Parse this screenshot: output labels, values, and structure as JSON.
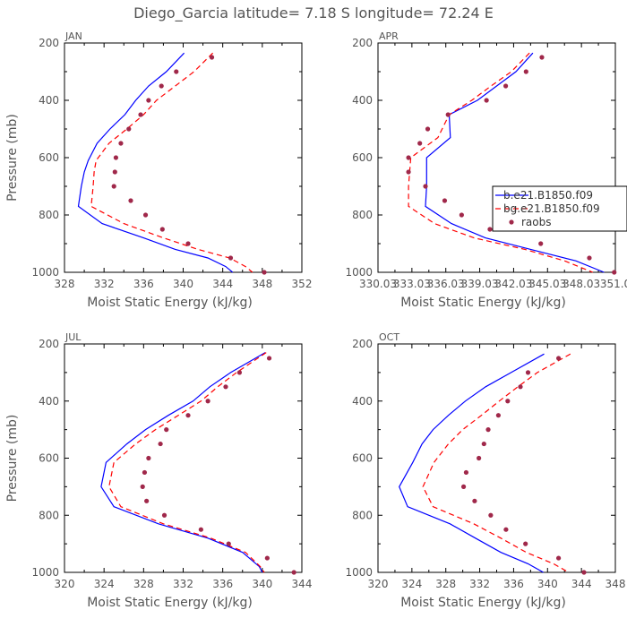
{
  "title": "Diego_Garcia  latitude= 7.18 S longitude= 72.24 E",
  "legend": {
    "placement": "right-middle of APR panel",
    "entries": [
      "b.e21.B1850.f09",
      "bg.e21.B1850.f09",
      "raobs"
    ]
  },
  "colors": {
    "model1": "#0000ff",
    "model2": "#ff0000",
    "raobs": "#a0284a",
    "axis": "#000000",
    "text": "#555555"
  },
  "chart_data": [
    {
      "type": "line",
      "panel": "JAN",
      "xlabel": "Moist Static Energy (kJ/kg)",
      "ylabel": "Pressure (mb)",
      "xlim": [
        328,
        352
      ],
      "ylim": [
        1000,
        200
      ],
      "xticks": [
        "328",
        "332",
        "336",
        "340",
        "344",
        "348",
        "352"
      ],
      "yticks": [
        "200",
        "400",
        "600",
        "800",
        "1000"
      ],
      "series": [
        {
          "name": "b.e21.B1850.f09",
          "style": "solid",
          "points": [
            [
              340.1,
              235
            ],
            [
              338.3,
              300
            ],
            [
              336.5,
              350
            ],
            [
              335.2,
              400
            ],
            [
              334.1,
              450
            ],
            [
              332.6,
              500
            ],
            [
              331.3,
              550
            ],
            [
              330.4,
              610
            ],
            [
              330.0,
              650
            ],
            [
              329.7,
              700
            ],
            [
              329.4,
              770
            ],
            [
              331.8,
              830
            ],
            [
              336.0,
              880
            ],
            [
              339.2,
              920
            ],
            [
              342.5,
              950
            ],
            [
              344.3,
              980
            ],
            [
              345.0,
              1000
            ]
          ]
        },
        {
          "name": "bg.e21.B1850.f09",
          "style": "dashed",
          "points": [
            [
              343.0,
              235
            ],
            [
              341.1,
              300
            ],
            [
              339.2,
              350
            ],
            [
              337.3,
              400
            ],
            [
              336.0,
              450
            ],
            [
              334.3,
              500
            ],
            [
              332.5,
              550
            ],
            [
              331.2,
              610
            ],
            [
              331.0,
              650
            ],
            [
              330.9,
              700
            ],
            [
              330.7,
              770
            ],
            [
              334.0,
              830
            ],
            [
              338.0,
              880
            ],
            [
              341.5,
              920
            ],
            [
              344.7,
              950
            ],
            [
              346.3,
              980
            ],
            [
              347.0,
              1000
            ]
          ]
        },
        {
          "name": "raobs",
          "style": "dots",
          "points": [
            [
              342.9,
              250
            ],
            [
              339.3,
              300
            ],
            [
              337.8,
              350
            ],
            [
              336.5,
              400
            ],
            [
              335.7,
              450
            ],
            [
              334.5,
              500
            ],
            [
              333.7,
              550
            ],
            [
              333.2,
              600
            ],
            [
              333.1,
              650
            ],
            [
              333.0,
              700
            ],
            [
              334.7,
              750
            ],
            [
              336.2,
              800
            ],
            [
              337.9,
              850
            ],
            [
              340.5,
              900
            ],
            [
              344.8,
              950
            ],
            [
              348.2,
              1000
            ]
          ]
        }
      ]
    },
    {
      "type": "line",
      "panel": "APR",
      "xlabel": "Moist Static Energy (kJ/kg)",
      "ylabel": "",
      "xlim": [
        330,
        351
      ],
      "ylim": [
        1000,
        200
      ],
      "xticks": [
        "330.03",
        "333.03",
        "336.03",
        "339.03",
        "342.03",
        "345.03",
        "348.03",
        "351.0"
      ],
      "yticks": [
        "200",
        "400",
        "600",
        "800",
        "1000"
      ],
      "series": [
        {
          "name": "b.e21.B1850.f09",
          "style": "solid",
          "points": [
            [
              343.7,
              235
            ],
            [
              342.2,
              300
            ],
            [
              340.5,
              350
            ],
            [
              338.8,
              400
            ],
            [
              336.3,
              450
            ],
            [
              336.4,
              530
            ],
            [
              334.3,
              600
            ],
            [
              334.3,
              700
            ],
            [
              334.2,
              770
            ],
            [
              336.5,
              830
            ],
            [
              339.5,
              880
            ],
            [
              343.5,
              920
            ],
            [
              347.5,
              960
            ],
            [
              350.0,
              1000
            ]
          ]
        },
        {
          "name": "bg.e21.B1850.f09",
          "style": "dashed",
          "points": [
            [
              343.4,
              235
            ],
            [
              341.8,
              300
            ],
            [
              340.0,
              350
            ],
            [
              338.3,
              400
            ],
            [
              336.3,
              450
            ],
            [
              335.3,
              530
            ],
            [
              332.9,
              600
            ],
            [
              332.7,
              700
            ],
            [
              332.7,
              770
            ],
            [
              335.0,
              830
            ],
            [
              338.5,
              880
            ],
            [
              343.0,
              920
            ],
            [
              346.5,
              960
            ],
            [
              349.0,
              1000
            ]
          ]
        },
        {
          "name": "raobs",
          "style": "dots",
          "points": [
            [
              344.5,
              250
            ],
            [
              343.1,
              300
            ],
            [
              341.3,
              350
            ],
            [
              339.6,
              400
            ],
            [
              336.2,
              450
            ],
            [
              334.4,
              500
            ],
            [
              333.7,
              550
            ],
            [
              332.7,
              600
            ],
            [
              332.7,
              650
            ],
            [
              334.2,
              700
            ],
            [
              335.9,
              750
            ],
            [
              337.4,
              800
            ],
            [
              339.9,
              850
            ],
            [
              344.4,
              900
            ],
            [
              348.7,
              950
            ],
            [
              350.9,
              1000
            ]
          ]
        }
      ]
    },
    {
      "type": "line",
      "panel": "JUL",
      "xlabel": "Moist Static Energy (kJ/kg)",
      "ylabel": "Pressure (mb)",
      "xlim": [
        320,
        344
      ],
      "ylim": [
        1000,
        200
      ],
      "xticks": [
        "320",
        "324",
        "328",
        "332",
        "336",
        "340",
        "344"
      ],
      "yticks": [
        "200",
        "400",
        "600",
        "800",
        "1000"
      ],
      "series": [
        {
          "name": "b.e21.B1850.f09",
          "style": "solid",
          "points": [
            [
              340.3,
              230
            ],
            [
              336.8,
              300
            ],
            [
              334.7,
              350
            ],
            [
              333.0,
              400
            ],
            [
              330.5,
              450
            ],
            [
              328.2,
              500
            ],
            [
              326.3,
              550
            ],
            [
              324.2,
              615
            ],
            [
              323.7,
              700
            ],
            [
              325.0,
              770
            ],
            [
              329.5,
              830
            ],
            [
              334.5,
              880
            ],
            [
              338.0,
              930
            ],
            [
              339.7,
              980
            ],
            [
              340.0,
              1000
            ]
          ]
        },
        {
          "name": "bg.e21.B1850.f09",
          "style": "dashed",
          "points": [
            [
              340.4,
              230
            ],
            [
              337.4,
              300
            ],
            [
              335.5,
              350
            ],
            [
              333.8,
              400
            ],
            [
              331.5,
              450
            ],
            [
              329.2,
              500
            ],
            [
              327.2,
              550
            ],
            [
              325.0,
              615
            ],
            [
              324.5,
              700
            ],
            [
              325.7,
              770
            ],
            [
              330.0,
              830
            ],
            [
              334.8,
              880
            ],
            [
              338.3,
              930
            ],
            [
              339.8,
              980
            ],
            [
              340.2,
              1000
            ]
          ]
        },
        {
          "name": "raobs",
          "style": "dots",
          "points": [
            [
              340.7,
              250
            ],
            [
              337.7,
              300
            ],
            [
              336.3,
              350
            ],
            [
              334.5,
              400
            ],
            [
              332.5,
              450
            ],
            [
              330.3,
              500
            ],
            [
              329.7,
              550
            ],
            [
              328.5,
              600
            ],
            [
              328.1,
              650
            ],
            [
              327.9,
              700
            ],
            [
              328.3,
              750
            ],
            [
              330.1,
              800
            ],
            [
              333.8,
              850
            ],
            [
              336.6,
              900
            ],
            [
              340.5,
              950
            ],
            [
              343.2,
              1000
            ]
          ]
        }
      ]
    },
    {
      "type": "line",
      "panel": "OCT",
      "xlabel": "Moist Static Energy (kJ/kg)",
      "ylabel": "",
      "xlim": [
        320,
        348
      ],
      "ylim": [
        1000,
        200
      ],
      "xticks": [
        "320",
        "324",
        "328",
        "332",
        "336",
        "340",
        "344",
        "348"
      ],
      "yticks": [
        "200",
        "400",
        "600",
        "800",
        "1000"
      ],
      "series": [
        {
          "name": "b.e21.B1850.f09",
          "style": "solid",
          "points": [
            [
              339.6,
              235
            ],
            [
              335.7,
              300
            ],
            [
              332.7,
              350
            ],
            [
              330.3,
              400
            ],
            [
              328.3,
              450
            ],
            [
              326.5,
              500
            ],
            [
              325.2,
              550
            ],
            [
              324.1,
              615
            ],
            [
              322.5,
              700
            ],
            [
              323.5,
              770
            ],
            [
              328.5,
              830
            ],
            [
              331.5,
              880
            ],
            [
              334.5,
              930
            ],
            [
              337.7,
              970
            ],
            [
              339.5,
              1000
            ]
          ]
        },
        {
          "name": "bg.e21.B1850.f09",
          "style": "dashed",
          "points": [
            [
              342.7,
              235
            ],
            [
              338.8,
              300
            ],
            [
              336.5,
              350
            ],
            [
              334.3,
              400
            ],
            [
              332.2,
              450
            ],
            [
              330.0,
              500
            ],
            [
              328.3,
              550
            ],
            [
              326.6,
              615
            ],
            [
              325.3,
              700
            ],
            [
              326.5,
              770
            ],
            [
              331.3,
              830
            ],
            [
              334.5,
              880
            ],
            [
              337.5,
              930
            ],
            [
              340.7,
              970
            ],
            [
              342.5,
              1000
            ]
          ]
        },
        {
          "name": "raobs",
          "style": "dots",
          "points": [
            [
              341.3,
              250
            ],
            [
              337.7,
              300
            ],
            [
              336.8,
              350
            ],
            [
              335.3,
              400
            ],
            [
              334.2,
              450
            ],
            [
              333.0,
              500
            ],
            [
              332.5,
              550
            ],
            [
              331.9,
              600
            ],
            [
              330.4,
              650
            ],
            [
              330.1,
              700
            ],
            [
              331.4,
              750
            ],
            [
              333.3,
              800
            ],
            [
              335.1,
              850
            ],
            [
              337.4,
              900
            ],
            [
              341.3,
              950
            ],
            [
              344.3,
              1000
            ]
          ]
        }
      ]
    }
  ]
}
